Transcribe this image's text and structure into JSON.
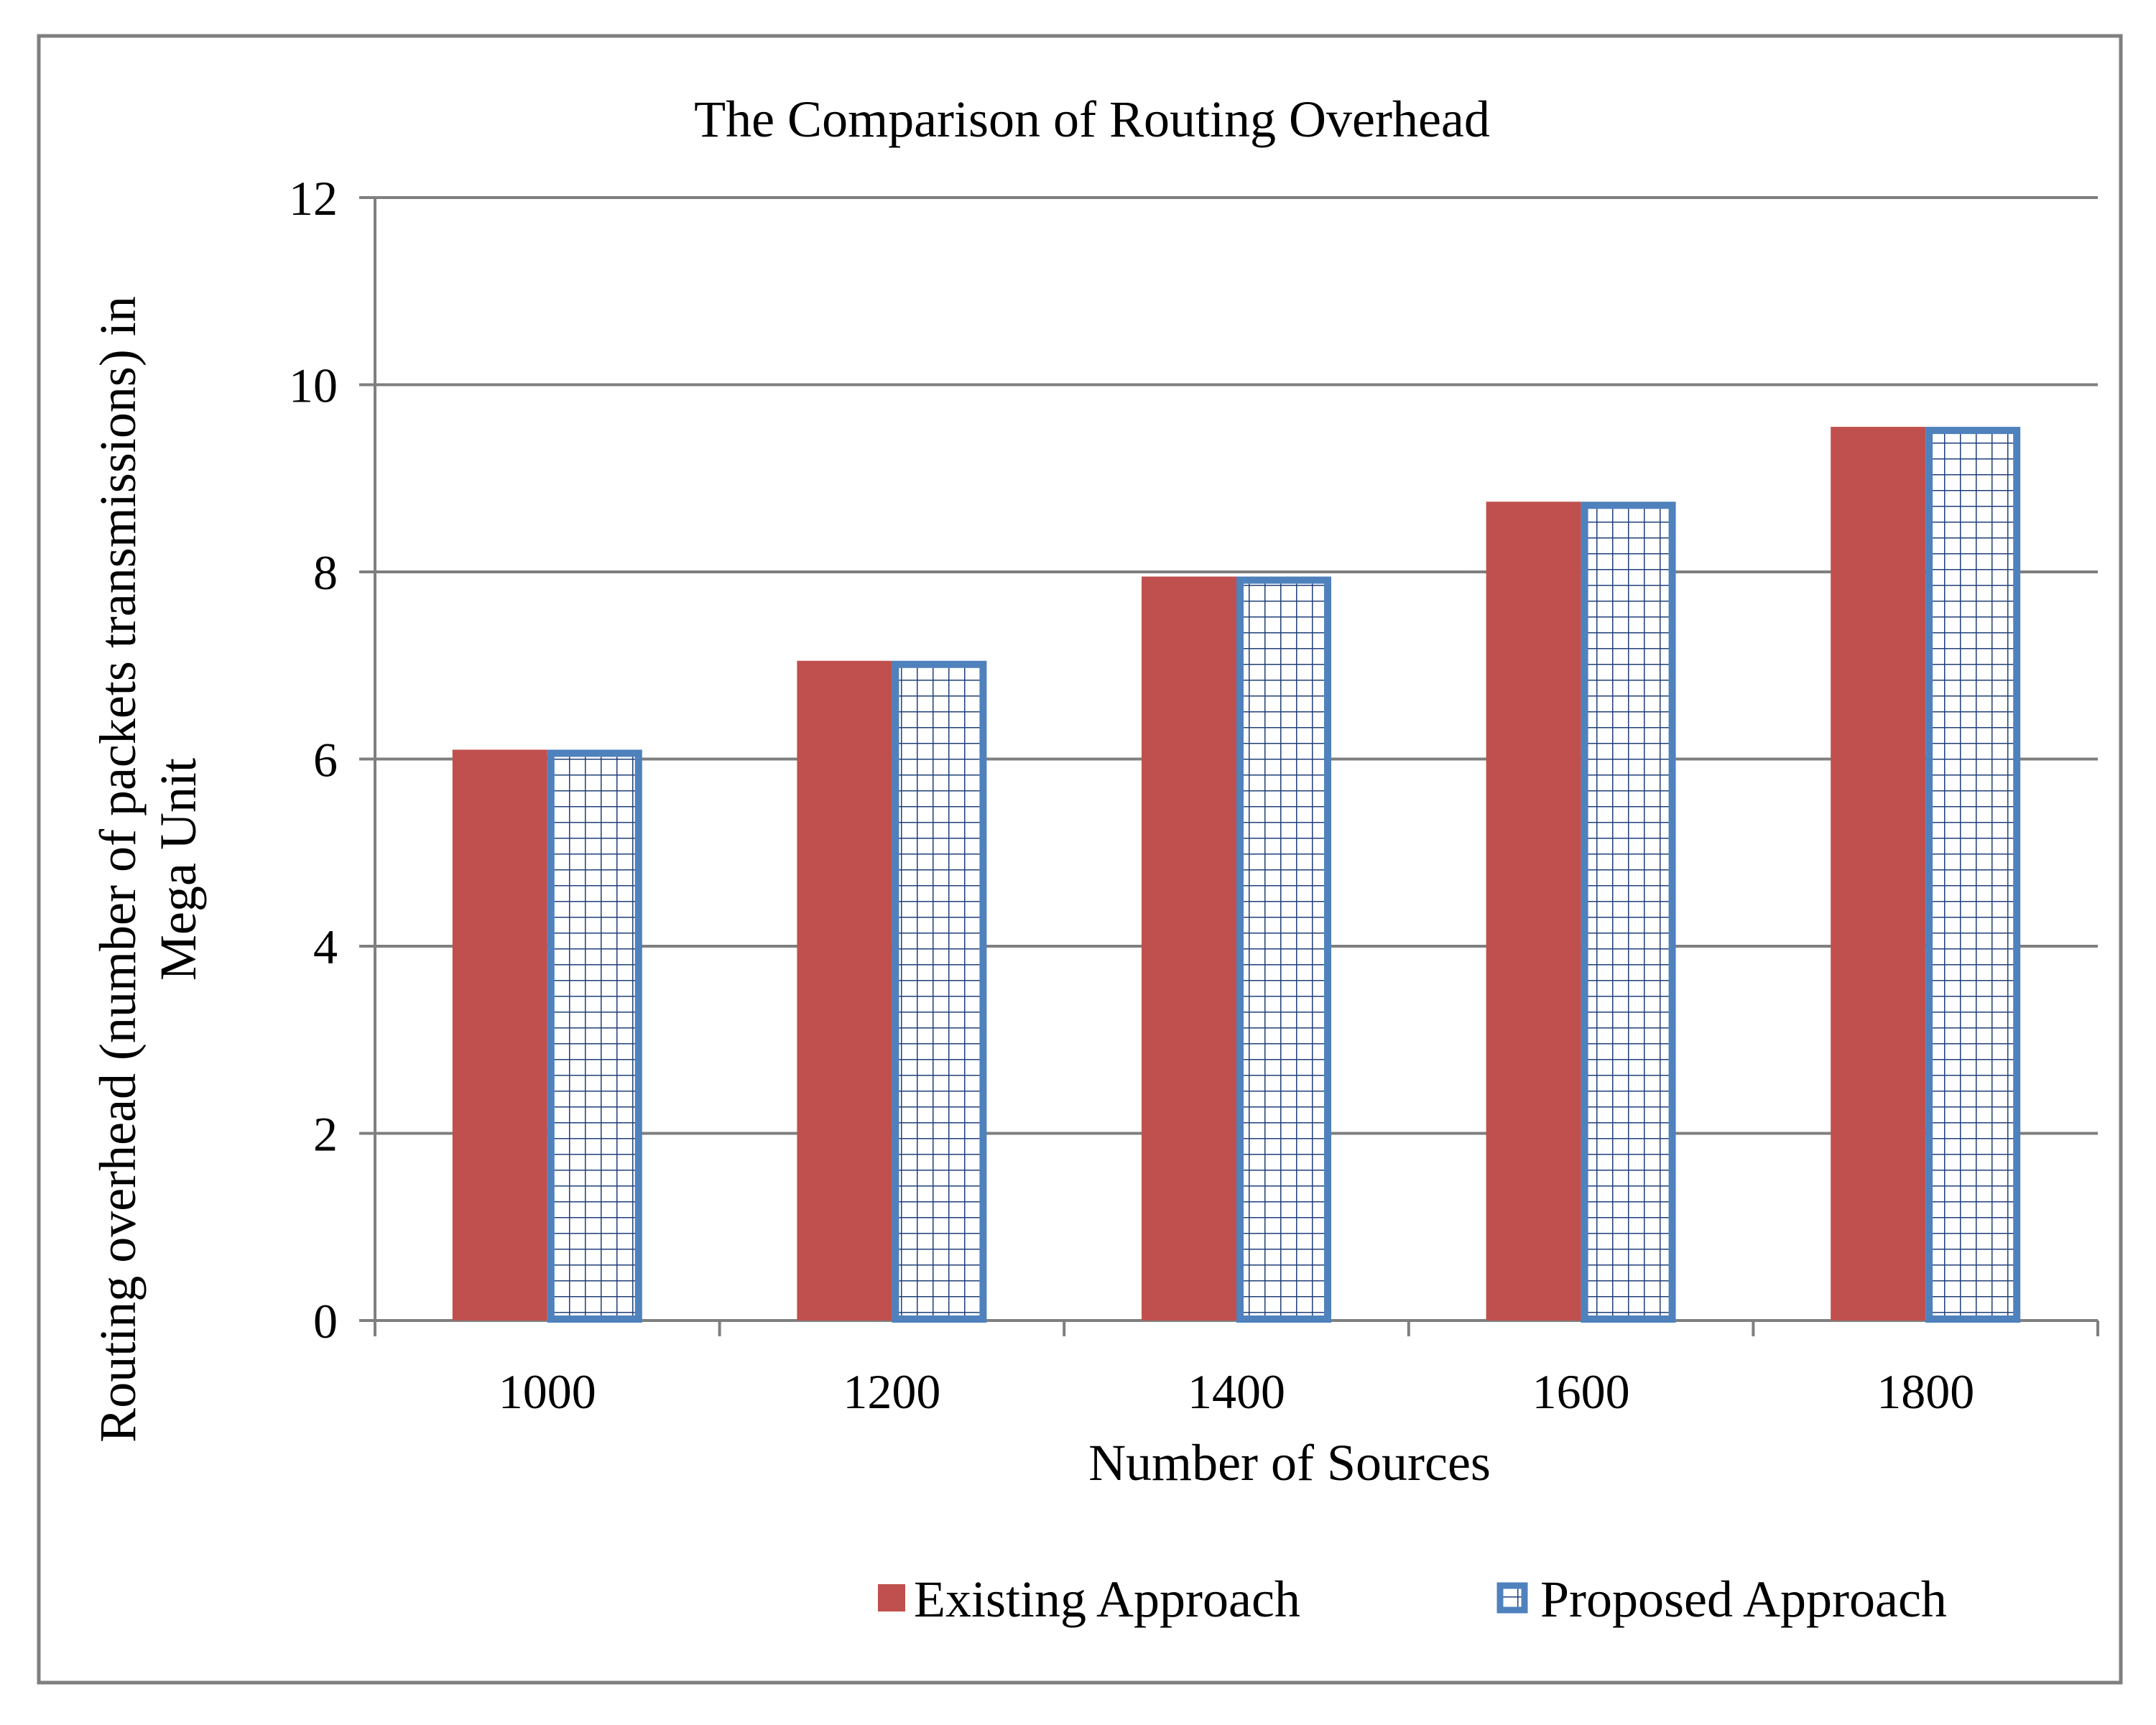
{
  "chart_data": {
    "type": "bar",
    "title": "The Comparison of Routing Overhead",
    "xlabel": "Number of Sources",
    "ylabel_line1": "Routing overhead (number of packets transmissions) in",
    "ylabel_line2": "Mega Unit",
    "categories": [
      "1000",
      "1200",
      "1400",
      "1600",
      "1800"
    ],
    "series": [
      {
        "name": "Existing Approach",
        "values": [
          6.1,
          7.05,
          7.95,
          8.75,
          9.55
        ],
        "color": "#c0504d",
        "pattern": "solid"
      },
      {
        "name": "Proposed Approach",
        "values": [
          6.1,
          7.05,
          7.95,
          8.75,
          9.55
        ],
        "color": "#4f81bd",
        "pattern": "grid"
      }
    ],
    "ylim": [
      0,
      12
    ],
    "yticks": [
      "0",
      "2",
      "4",
      "6",
      "8",
      "10",
      "12"
    ],
    "grid": true,
    "legend_position": "bottom-right"
  }
}
